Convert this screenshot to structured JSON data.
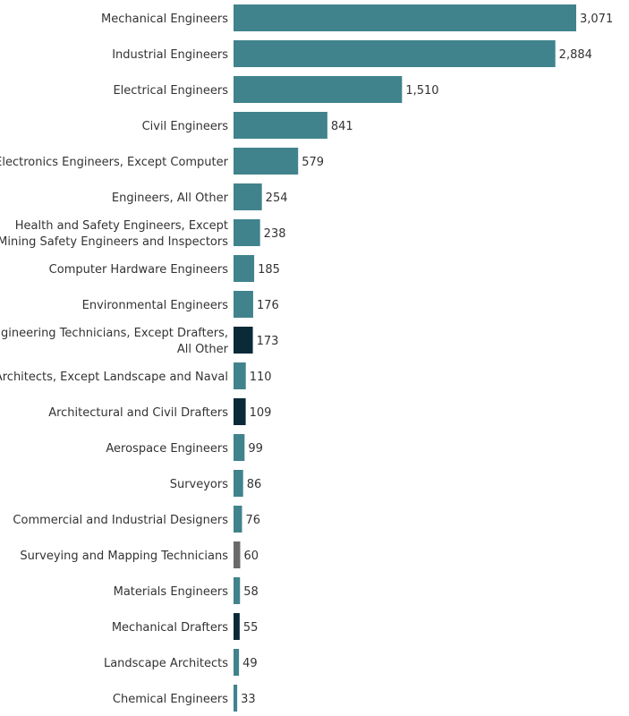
{
  "chart_data": {
    "type": "bar",
    "orientation": "horizontal",
    "categories": [
      "Mechanical Engineers",
      "Industrial Engineers",
      "Electrical Engineers",
      "Civil Engineers",
      "Electronics Engineers, Except Computer",
      "Engineers, All Other",
      "Health and Safety Engineers, Except Mining Safety Engineers and Inspectors",
      "Computer Hardware Engineers",
      "Environmental Engineers",
      "Engineering Technicians, Except Drafters, All Other",
      "Architects, Except Landscape and Naval",
      "Architectural and Civil Drafters",
      "Aerospace Engineers",
      "Surveyors",
      "Commercial and Industrial Designers",
      "Surveying and Mapping Technicians",
      "Materials Engineers",
      "Mechanical Drafters",
      "Landscape Architects",
      "Chemical Engineers"
    ],
    "category_lines": [
      [
        "Mechanical Engineers"
      ],
      [
        "Industrial Engineers"
      ],
      [
        "Electrical Engineers"
      ],
      [
        "Civil Engineers"
      ],
      [
        "Electronics Engineers, Except Computer"
      ],
      [
        "Engineers, All Other"
      ],
      [
        "Health and Safety Engineers, Except",
        "Mining Safety Engineers and Inspectors"
      ],
      [
        "Computer Hardware Engineers"
      ],
      [
        "Environmental Engineers"
      ],
      [
        "Engineering Technicians, Except Drafters,",
        "All Other"
      ],
      [
        "Architects, Except Landscape and Naval"
      ],
      [
        "Architectural and Civil Drafters"
      ],
      [
        "Aerospace Engineers"
      ],
      [
        "Surveyors"
      ],
      [
        "Commercial and Industrial Designers"
      ],
      [
        "Surveying and Mapping Technicians"
      ],
      [
        "Materials Engineers"
      ],
      [
        "Mechanical Drafters"
      ],
      [
        "Landscape Architects"
      ],
      [
        "Chemical Engineers"
      ]
    ],
    "values": [
      3071,
      2884,
      1510,
      841,
      579,
      254,
      238,
      185,
      176,
      173,
      110,
      109,
      99,
      86,
      76,
      60,
      58,
      55,
      49,
      33
    ],
    "value_labels": [
      "3,071",
      "2,884",
      "1,510",
      "841",
      "579",
      "254",
      "238",
      "185",
      "176",
      "173",
      "110",
      "109",
      "99",
      "86",
      "76",
      "60",
      "58",
      "55",
      "49",
      "33"
    ],
    "bar_colors": [
      "#40838c",
      "#40838c",
      "#40838c",
      "#40838c",
      "#40838c",
      "#40838c",
      "#40838c",
      "#40838c",
      "#40838c",
      "#0b2a38",
      "#40838c",
      "#0b2a38",
      "#40838c",
      "#40838c",
      "#40838c",
      "#6a6a6a",
      "#40838c",
      "#0b2a38",
      "#40838c",
      "#40838c"
    ],
    "title": "",
    "xlabel": "",
    "ylabel": "",
    "xlim": [
      0,
      3071
    ],
    "grid": false,
    "legend": "none"
  }
}
